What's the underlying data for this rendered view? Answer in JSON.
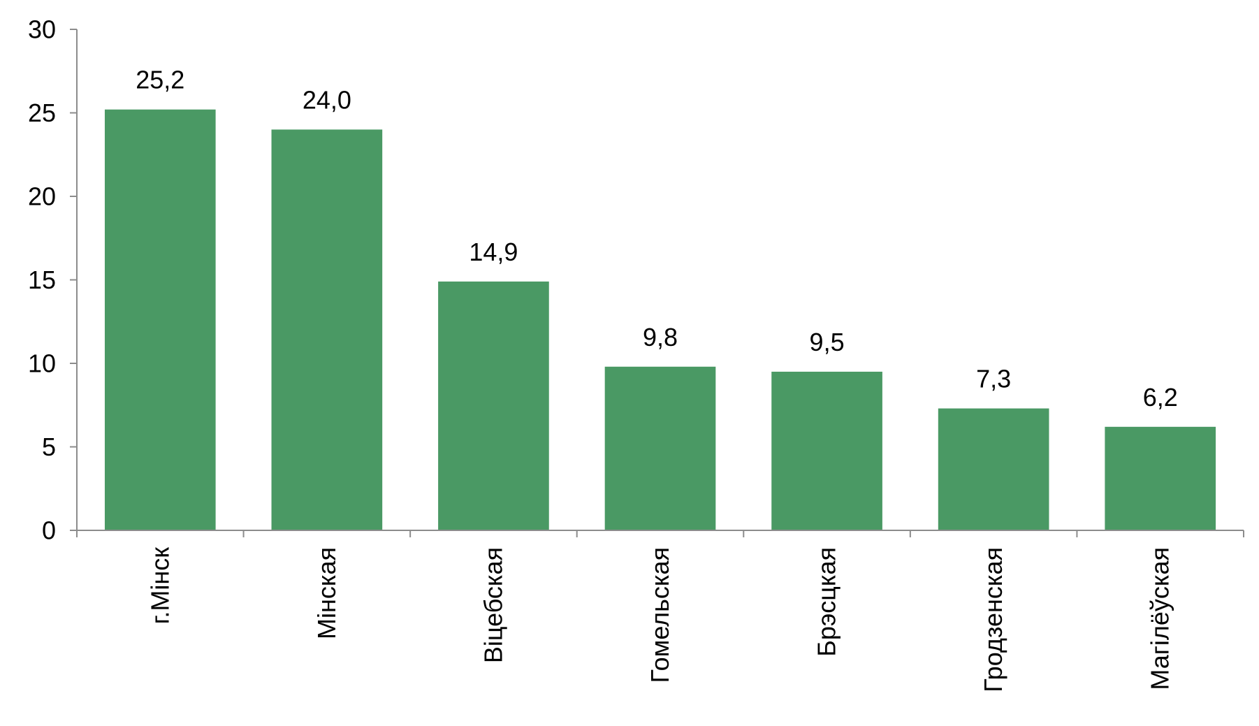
{
  "chart_data": {
    "type": "bar",
    "title": "",
    "xlabel": "",
    "ylabel": "",
    "categories": [
      "г.Мінск",
      "Мінская",
      "Віцебская",
      "Гомельская",
      "Брэсцкая",
      "Гродзенская",
      "Магілёўская"
    ],
    "values": [
      25.2,
      24.0,
      14.9,
      9.8,
      9.5,
      7.3,
      6.2
    ],
    "value_labels": [
      "25,2",
      "24,0",
      "14,9",
      "9,8",
      "9,5",
      "7,3",
      "6,2"
    ],
    "ylim": [
      0,
      30
    ],
    "yticks": [
      0,
      5,
      10,
      15,
      20,
      25,
      30
    ],
    "ytick_labels": [
      "0",
      "5",
      "10",
      "15",
      "20",
      "25",
      "30"
    ],
    "grid": false,
    "legend": "none",
    "bar_color": "#4a9964",
    "axis_color": "#8c8c8c"
  }
}
